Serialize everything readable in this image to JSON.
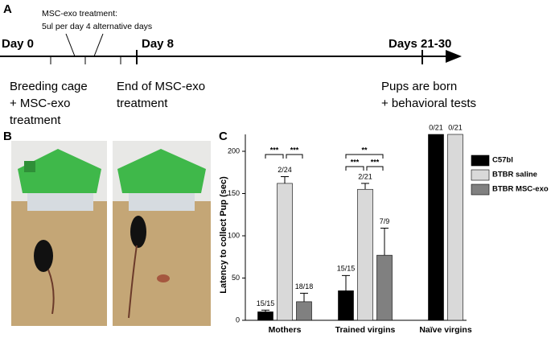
{
  "panel_labels": [
    "A",
    "B",
    "C"
  ],
  "timeline": {
    "markers": [
      "Day 0",
      "Day 8",
      "Days 21-30"
    ],
    "treatment_note": [
      "MSC-exo treatment:",
      "5ul per day 4 alternative days"
    ],
    "events": [
      [
        "Breeding cage",
        "+ MSC-exo",
        "treatment"
      ],
      [
        "End of MSC-exo",
        "treatment"
      ],
      [
        "Pups are born",
        "+ behavioral tests"
      ]
    ]
  },
  "chart_data": {
    "type": "bar",
    "y_label": "Latency to collect Pup (sec)",
    "categories": [
      "Mothers",
      "Trained virgins",
      "Naïve virgins"
    ],
    "series": [
      {
        "name": "C57bl",
        "color": "#000000",
        "values": [
          10,
          35,
          220
        ],
        "errors": [
          2,
          18,
          0
        ],
        "bar_labels": [
          "15/15",
          "15/15",
          "0/21"
        ]
      },
      {
        "name": "BTBR saline",
        "color": "#d9d9d9",
        "values": [
          162,
          155,
          220
        ],
        "errors": [
          8,
          7,
          0
        ],
        "bar_labels": [
          "2/24",
          "2/21",
          "0/21"
        ]
      },
      {
        "name": "BTBR MSC-exo",
        "color": "#808080",
        "values": [
          22,
          77,
          null
        ],
        "errors": [
          10,
          32,
          null
        ],
        "bar_labels": [
          "18/18",
          "7/9",
          null
        ]
      }
    ],
    "significance": [
      [
        "***",
        "***"
      ],
      [
        "**",
        "***",
        "***"
      ]
    ],
    "ylim": [
      0,
      220
    ],
    "yticks": [
      0,
      50,
      100,
      150,
      200
    ]
  }
}
